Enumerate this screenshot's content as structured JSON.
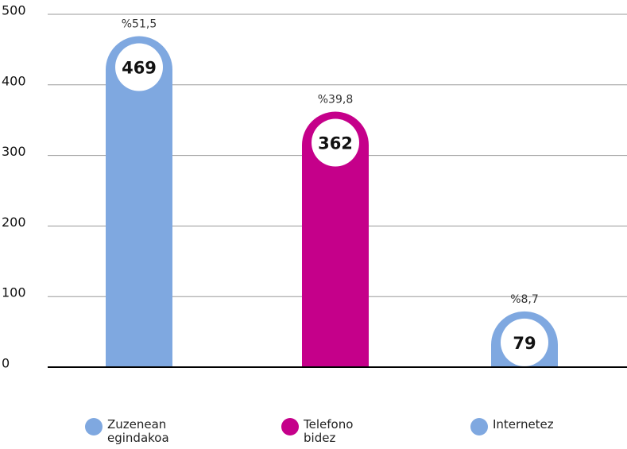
{
  "chart_data": {
    "type": "bar",
    "categories": [
      "Zuzenean egindakoa",
      "Telefono bidez",
      "Internetez"
    ],
    "values": [
      469,
      362,
      79
    ],
    "colors": [
      "#7fa8e0",
      "#c5008a",
      "#7fa8e0"
    ],
    "annotations": [
      "%51,5",
      "%39,8",
      "%8,7"
    ],
    "ylim": [
      0,
      500
    ],
    "yticks": [
      0,
      100,
      200,
      300,
      400,
      500
    ],
    "grid": true
  }
}
